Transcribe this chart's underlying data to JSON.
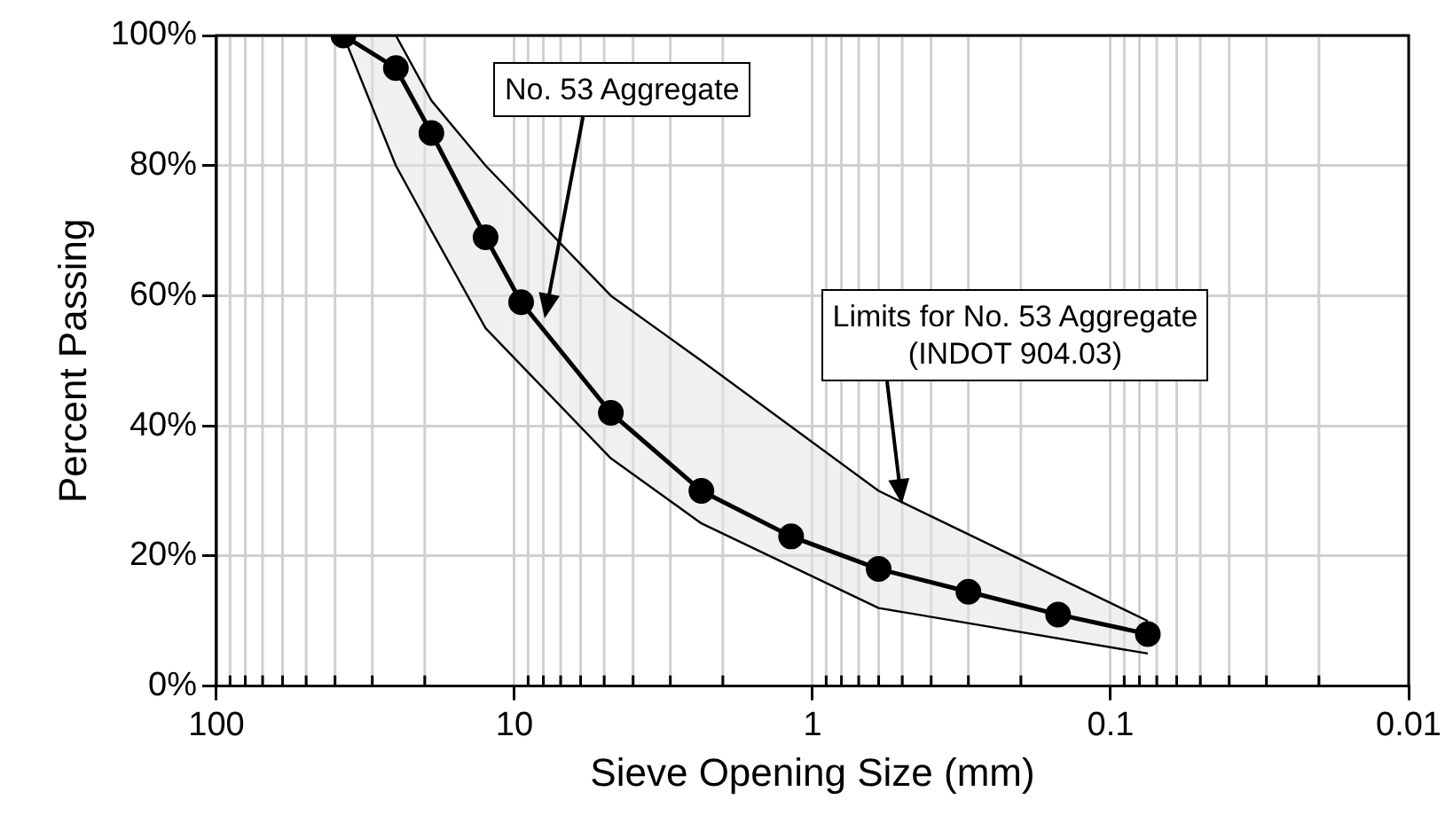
{
  "chart_data": {
    "type": "line",
    "xlabel": "Sieve Opening Size (mm)",
    "ylabel": "Percent Passing",
    "log": "x",
    "grid": true,
    "legend": false,
    "marker": "none",
    "line_style": "solid",
    "xlim": [
      100,
      0.01
    ],
    "xticks": [
      100,
      10,
      1,
      0.1,
      0.01
    ],
    "ylim": [
      0,
      100
    ],
    "yticks": [
      {
        "value": 0,
        "label": "0%"
      },
      {
        "value": 20,
        "label": "20%"
      },
      {
        "value": 40,
        "label": "40%"
      },
      {
        "value": 60,
        "label": "60%"
      },
      {
        "value": 80,
        "label": "80%"
      },
      {
        "value": 100,
        "label": "100%"
      }
    ],
    "series": [
      {
        "color": "#000000",
        "x": [
          37.5,
          25,
          19,
          12.5,
          4.75,
          2.36,
          0.6,
          0.075
        ],
        "values": [
          100,
          100,
          90,
          80,
          60,
          50,
          30,
          10
        ]
      },
      {
        "color": "#000000",
        "x": [
          37.5,
          25,
          19,
          12.5,
          4.75,
          2.36,
          0.6,
          0.075
        ],
        "values": [
          100,
          80,
          70,
          55,
          35,
          25,
          12,
          5
        ]
      },
      {
        "color": "#000000",
        "marker": "circle",
        "x": [
          37.5,
          25,
          19,
          12.5,
          9.5,
          4.75,
          2.36,
          1.18,
          0.6,
          0.3,
          0.15,
          0.075
        ],
        "values": [
          100,
          95,
          85,
          69,
          59,
          42,
          30,
          23,
          18,
          14.5,
          11,
          8
        ]
      }
    ],
    "annotations": [
      "No. 53 Aggregate",
      "Limits for No. 53 Aggregate\n(INDOT 904.03)"
    ]
  }
}
